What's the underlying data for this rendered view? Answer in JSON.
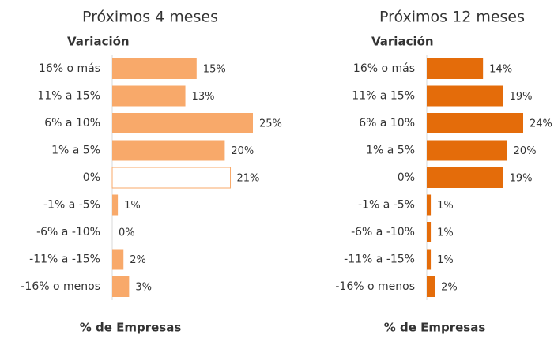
{
  "chart_data": [
    {
      "type": "barh",
      "title": "Próximos 4 meses",
      "category_header": "Variación",
      "xlabel": "% de Empresas",
      "categories": [
        "16% o más",
        "11% a 15%",
        "6% a 10%",
        "1% a 5%",
        "0%",
        "-1% a -5%",
        "-6% a -10%",
        "-11% a -15%",
        "-16% o menos"
      ],
      "values": [
        15,
        13,
        25,
        20,
        21,
        1,
        0,
        2,
        3
      ],
      "value_labels": [
        "15%",
        "13%",
        "25%",
        "20%",
        "21%",
        "1%",
        "0%",
        "2%",
        "3%"
      ],
      "colors": [
        "#f8a96a",
        "#f8a96a",
        "#f8a96a",
        "#f8a96a",
        "#ffffff",
        "#f8a96a",
        "#f8a96a",
        "#f8a96a",
        "#f8a96a"
      ],
      "edgecolor": "#f8a96a"
    },
    {
      "type": "barh",
      "title": "Próximos 12 meses",
      "category_header": "Variación",
      "xlabel": "% de Empresas",
      "categories": [
        "16% o más",
        "11% a 15%",
        "6% a 10%",
        "1% a 5%",
        "0%",
        "-1% a -5%",
        "-6% a -10%",
        "-11% a -15%",
        "-16% o menos"
      ],
      "values": [
        14,
        19,
        24,
        20,
        19,
        1,
        1,
        1,
        2
      ],
      "value_labels": [
        "14%",
        "19%",
        "24%",
        "20%",
        "19%",
        "1%",
        "1%",
        "1%",
        "2%"
      ],
      "colors": [
        "#e46c0a",
        "#e46c0a",
        "#e46c0a",
        "#e46c0a",
        "#e46c0a",
        "#e46c0a",
        "#e46c0a",
        "#e46c0a",
        "#e46c0a"
      ],
      "edgecolor": "#e46c0a"
    }
  ]
}
